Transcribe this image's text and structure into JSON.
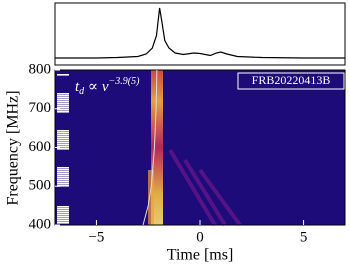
{
  "chart_data": [
    {
      "type": "line",
      "color": "#000000",
      "xlim": [
        -7,
        7
      ],
      "x": [
        -7,
        -6,
        -5,
        -4,
        -3,
        -2.6,
        -2.3,
        -2.1,
        -1.95,
        -1.85,
        -1.7,
        -1.5,
        -1.2,
        -0.8,
        -0.3,
        0,
        0.5,
        0.8,
        1.0,
        1.3,
        1.8,
        3,
        5,
        7
      ],
      "values": [
        0,
        0,
        0,
        0.01,
        0.03,
        0.08,
        0.2,
        0.45,
        1.0,
        0.75,
        0.35,
        0.2,
        0.1,
        0.07,
        0.1,
        0.09,
        0.05,
        0.1,
        0.12,
        0.08,
        0.03,
        0.01,
        0,
        0
      ]
    },
    {
      "type": "heatmap",
      "label": "FRB20220413B",
      "xlabel": "Time [ms]",
      "ylabel": "Frequency [MHz]",
      "xlim": [
        -7,
        7
      ],
      "ylim": [
        400,
        800
      ],
      "xticks": [
        {
          "value": -5,
          "label": "−5"
        },
        0,
        5
      ],
      "yticks": [
        400,
        500,
        600,
        700,
        800
      ],
      "annotation": {
        "base": "t",
        "sub": "d",
        "mid": " ∝ ν",
        "sup": "−3.9(5)"
      },
      "curve": {
        "color": "#dddddd",
        "x": [
          -2.75,
          -2.5,
          -2.35,
          -2.2,
          -2.12,
          -2.08
        ],
        "y": [
          400,
          450,
          500,
          600,
          700,
          800
        ]
      }
    }
  ]
}
